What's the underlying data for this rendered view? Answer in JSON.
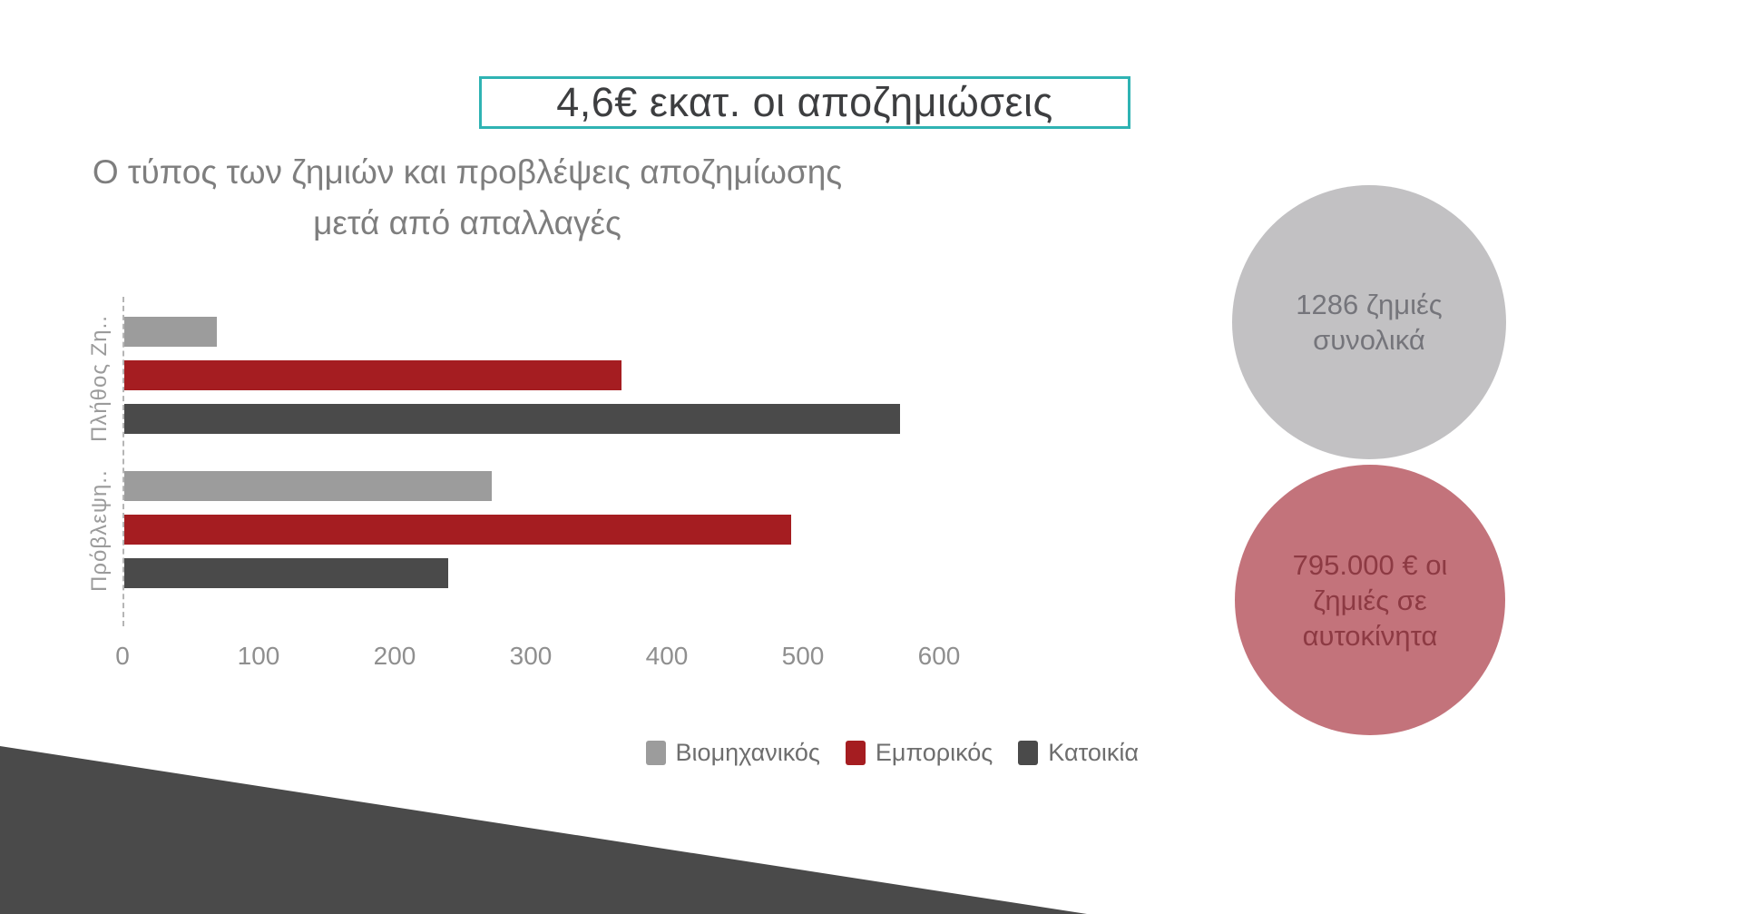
{
  "slide": {
    "title": "4,6€ εκατ. οι αποζημιώσεις",
    "subtitle_line1": "Ο τύπος των ζημιών και προβλέψεις αποζημίωσης",
    "subtitle_line2": "μετά από απαλλαγές"
  },
  "chart_data": {
    "type": "bar",
    "orientation": "horizontal",
    "title": "Ο τύπος των ζημιών και προβλέψεις αποζημίωσης μετά από απαλλαγές",
    "categories": [
      "Πλήθος Ζη..",
      "Πρόβλεψη.."
    ],
    "series": [
      {
        "name": "Βιομηχανικός",
        "color": "#9c9c9c",
        "values": [
          68,
          270
        ]
      },
      {
        "name": "Εμπορικός",
        "color": "#a51d21",
        "values": [
          365,
          490
        ]
      },
      {
        "name": "Κατοικία",
        "color": "#4a4a4a",
        "values": [
          570,
          238
        ]
      }
    ],
    "xlim": [
      0,
      600
    ],
    "xticks": [
      0,
      100,
      200,
      300,
      400,
      500,
      600
    ],
    "grid": false,
    "legend_position": "bottom-right",
    "xlabel": "",
    "ylabel": ""
  },
  "infographics": {
    "total_claims_circle": {
      "line1": "1286 ζημιές",
      "line2": "συνολικά",
      "fill": "#c2c1c3",
      "text_color": "#75757b"
    },
    "auto_damage_circle": {
      "line1": "795.000 € οι",
      "line2": "ζημιές σε",
      "line3": "αυτοκίνητα",
      "fill": "#c3737b",
      "text_color": "#8d3a43"
    }
  },
  "colors": {
    "title_border": "#2fb3b3",
    "title_text": "#3d3e40",
    "subtitle_text": "#7e7e7e",
    "axis_text": "#8f8f8f",
    "category_text": "#9b9b9b",
    "legend_text": "#6e6e6e",
    "triangle": "#4a4a4a",
    "background": "#ffffff"
  }
}
